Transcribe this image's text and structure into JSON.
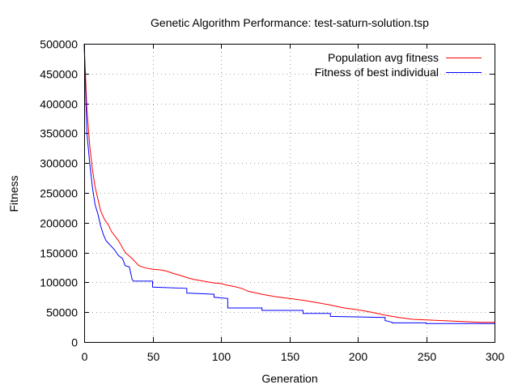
{
  "chart_data": {
    "type": "line",
    "title": "Genetic Algorithm Performance: test-saturn-solution.tsp",
    "xlabel": "Generation",
    "ylabel": "Fitness",
    "xlim": [
      0,
      300
    ],
    "ylim": [
      0,
      500000
    ],
    "xticks": [
      0,
      50,
      100,
      150,
      200,
      250,
      300
    ],
    "xtick_labels": [
      "0",
      "50",
      "100",
      "150",
      "200",
      "250",
      "300"
    ],
    "yticks": [
      0,
      50000,
      100000,
      150000,
      200000,
      250000,
      300000,
      350000,
      400000,
      450000,
      500000
    ],
    "ytick_labels": [
      "0",
      "50000",
      "100000",
      "150000",
      "200000",
      "250000",
      "300000",
      "350000",
      "400000",
      "450000",
      "500000"
    ],
    "grid": true,
    "legend_position": "top-right",
    "series": [
      {
        "name": "Population avg fitness",
        "color": "#ff0000",
        "x": [
          0,
          2,
          4,
          6,
          8,
          10,
          12,
          15,
          18,
          20,
          25,
          30,
          35,
          40,
          45,
          50,
          55,
          60,
          65,
          70,
          75,
          80,
          85,
          90,
          95,
          100,
          105,
          110,
          115,
          120,
          130,
          140,
          150,
          160,
          170,
          180,
          190,
          200,
          210,
          220,
          230,
          240,
          250,
          260,
          270,
          280,
          290,
          300
        ],
        "y": [
          500000,
          390000,
          330000,
          290000,
          260000,
          240000,
          220000,
          205000,
          195000,
          185000,
          170000,
          150000,
          140000,
          128000,
          124000,
          122000,
          121000,
          119000,
          115000,
          112000,
          108000,
          105000,
          103000,
          101000,
          99000,
          98000,
          95000,
          93000,
          90000,
          85000,
          80000,
          76000,
          73000,
          70000,
          66000,
          62000,
          57000,
          54000,
          50000,
          45000,
          41000,
          38000,
          37000,
          36000,
          35000,
          34000,
          33000,
          33000
        ]
      },
      {
        "name": "Fitness of best individual",
        "color": "#0000ff",
        "x": [
          0,
          2,
          4,
          6,
          8,
          10,
          12,
          14,
          16,
          18,
          20,
          22,
          25,
          28,
          30,
          33,
          35,
          36,
          40,
          50,
          50,
          75,
          75,
          95,
          95,
          105,
          105,
          130,
          130,
          160,
          160,
          180,
          180,
          220,
          220,
          225,
          225,
          250,
          250,
          300
        ],
        "y": [
          500000,
          350000,
          300000,
          260000,
          230000,
          215000,
          195000,
          180000,
          170000,
          165000,
          160000,
          155000,
          145000,
          140000,
          128000,
          126000,
          105000,
          102000,
          102000,
          102000,
          92000,
          90000,
          82000,
          80000,
          75000,
          73000,
          57000,
          57000,
          53000,
          53000,
          48000,
          48000,
          43000,
          41000,
          36000,
          33000,
          32000,
          32000,
          31000,
          31000
        ]
      }
    ]
  }
}
